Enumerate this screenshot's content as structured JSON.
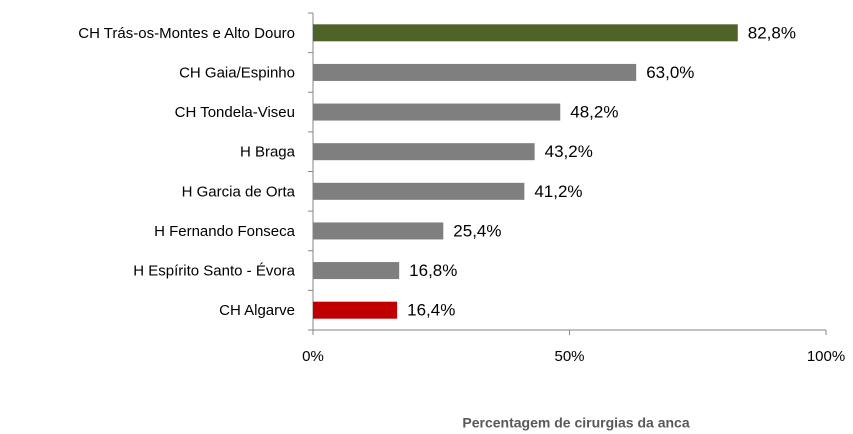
{
  "chart_data": {
    "type": "bar",
    "orientation": "horizontal",
    "x_axis_label": "Percentagem de cirurgias da anca",
    "categories": [
      "CH Trás-os-Montes e Alto Douro",
      "CH Gaia/Espinho",
      "CH Tondela-Viseu",
      "H Braga",
      "H Garcia de Orta",
      "H Fernando Fonseca",
      "H Espírito Santo - Évora",
      "CH Algarve"
    ],
    "values": [
      82.8,
      63.0,
      48.2,
      43.2,
      41.2,
      25.4,
      16.8,
      16.4
    ],
    "value_labels": [
      "82,8%",
      "63,0%",
      "48,2%",
      "43,2%",
      "41,2%",
      "25,4%",
      "16,8%",
      "16,4%"
    ],
    "colors": [
      "#4f6228",
      "#7f7f7f",
      "#7f7f7f",
      "#7f7f7f",
      "#7f7f7f",
      "#7f7f7f",
      "#7f7f7f",
      "#c00000"
    ],
    "xlim": [
      0,
      100
    ],
    "xticks": [
      {
        "value": 0,
        "label": "0%"
      },
      {
        "value": 50,
        "label": "50%"
      },
      {
        "value": 100,
        "label": "100%"
      }
    ],
    "grid": false
  }
}
